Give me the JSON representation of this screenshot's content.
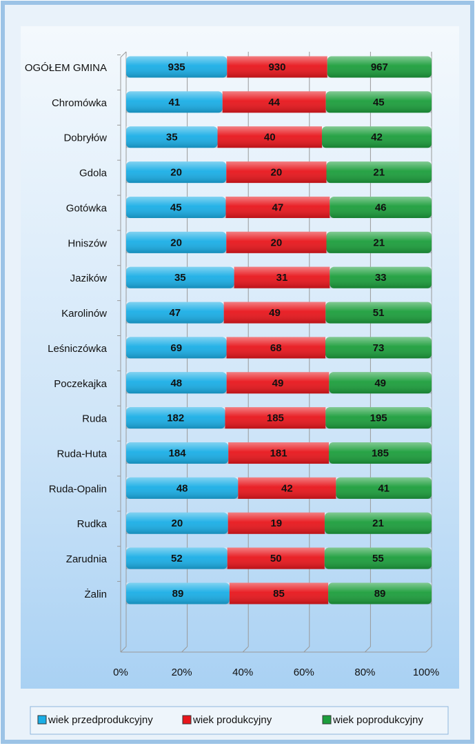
{
  "chart_data": {
    "type": "bar",
    "orientation": "horizontal",
    "stacked": "percent",
    "categories": [
      "OGÓŁEM GMINA",
      "Chromówka",
      "Dobryłów",
      "Gdola",
      "Gotówka",
      "Hniszów",
      "Jazików",
      "Karolinów",
      "Leśniczówka",
      "Poczekajka",
      "Ruda",
      "Ruda-Huta",
      "Ruda-Opalin",
      "Rudka",
      "Zarudnia",
      "Żalin"
    ],
    "series": [
      {
        "name": "wiek przedprodukcyjny",
        "color": "#1aaee6",
        "values": [
          935,
          41,
          35,
          20,
          45,
          20,
          35,
          47,
          69,
          48,
          182,
          184,
          48,
          20,
          52,
          89
        ]
      },
      {
        "name": "wiek produkcyjny",
        "color": "#e8161c",
        "values": [
          930,
          44,
          40,
          20,
          47,
          20,
          31,
          49,
          68,
          49,
          185,
          181,
          42,
          19,
          50,
          85
        ]
      },
      {
        "name": "wiek poprodukcyjny",
        "color": "#1c9e3c",
        "values": [
          967,
          45,
          42,
          21,
          46,
          21,
          33,
          51,
          73,
          49,
          195,
          185,
          41,
          21,
          55,
          89
        ]
      }
    ],
    "xlim": [
      0,
      100
    ],
    "xticks": [
      {
        "value": 0,
        "label": "0%"
      },
      {
        "value": 20,
        "label": "20%"
      },
      {
        "value": 40,
        "label": "40%"
      },
      {
        "value": 60,
        "label": "60%"
      },
      {
        "value": 80,
        "label": "80%"
      },
      {
        "value": 100,
        "label": "100%"
      }
    ],
    "grid": true,
    "legend": "bottom"
  }
}
